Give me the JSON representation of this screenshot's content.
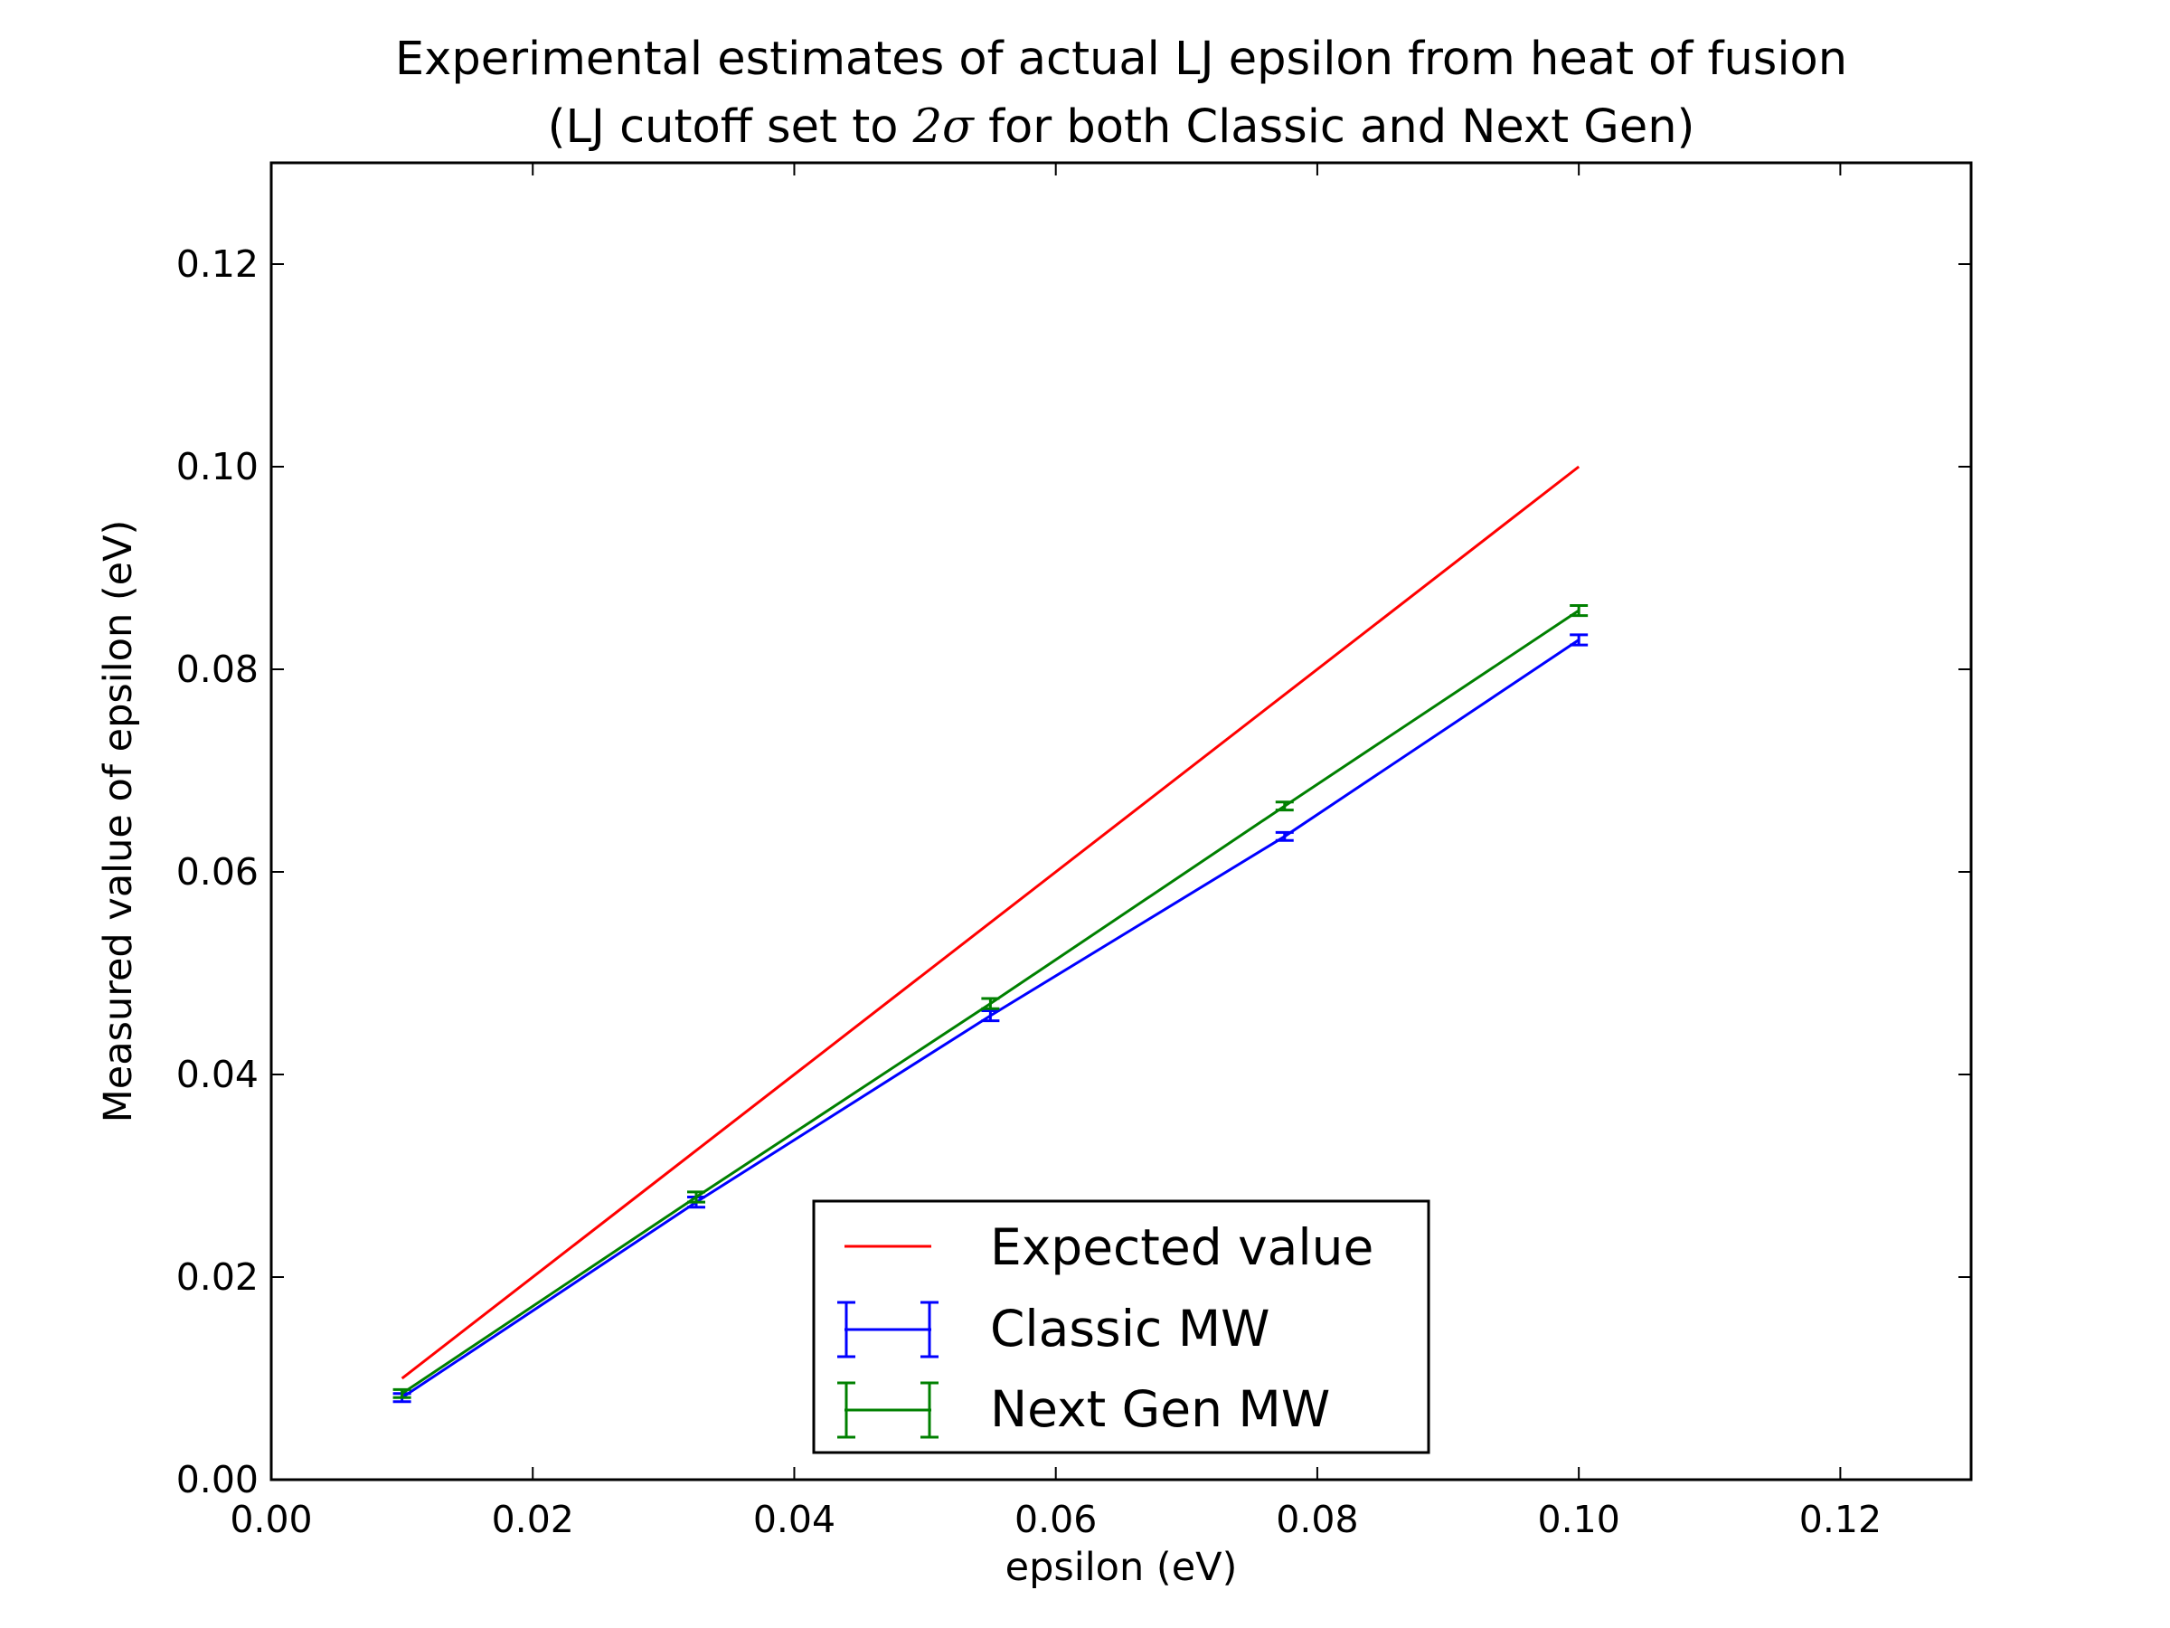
{
  "chart_data": {
    "type": "line",
    "title": "Experimental estimates of actual LJ epsilon from heat of fusion",
    "subtitle_pre": "(LJ cutoff set to ",
    "subtitle_math": "2σ",
    "subtitle_post": " for both Classic and Next Gen)",
    "xlabel": "epsilon (eV)",
    "ylabel": "Measured value of epsilon (eV)",
    "xlim": [
      0.0,
      0.13
    ],
    "ylim": [
      0.0,
      0.13
    ],
    "xticks": [
      "0.00",
      "0.02",
      "0.04",
      "0.06",
      "0.08",
      "0.10",
      "0.12"
    ],
    "yticks": [
      "0.00",
      "0.02",
      "0.04",
      "0.06",
      "0.08",
      "0.10",
      "0.12"
    ],
    "grid": false,
    "legend_position": "bottom-center",
    "series": [
      {
        "name": "Expected value",
        "color": "#ff0000",
        "style": "line",
        "x": [
          0.01,
          0.1
        ],
        "y": [
          0.01,
          0.1
        ]
      },
      {
        "name": "Classic MW",
        "color": "#0000ff",
        "style": "errorbar",
        "x": [
          0.01,
          0.0325,
          0.055,
          0.0775,
          0.1
        ],
        "y": [
          0.0081,
          0.0274,
          0.0458,
          0.0635,
          0.0829
        ],
        "yerr": [
          0.0004,
          0.0005,
          0.0005,
          0.0004,
          0.0005
        ]
      },
      {
        "name": "Next Gen MW",
        "color": "#008000",
        "style": "errorbar",
        "x": [
          0.01,
          0.0325,
          0.055,
          0.0775,
          0.1
        ],
        "y": [
          0.0085,
          0.0279,
          0.047,
          0.0665,
          0.0858
        ],
        "yerr": [
          0.0004,
          0.0005,
          0.0005,
          0.0004,
          0.0005
        ]
      }
    ]
  }
}
